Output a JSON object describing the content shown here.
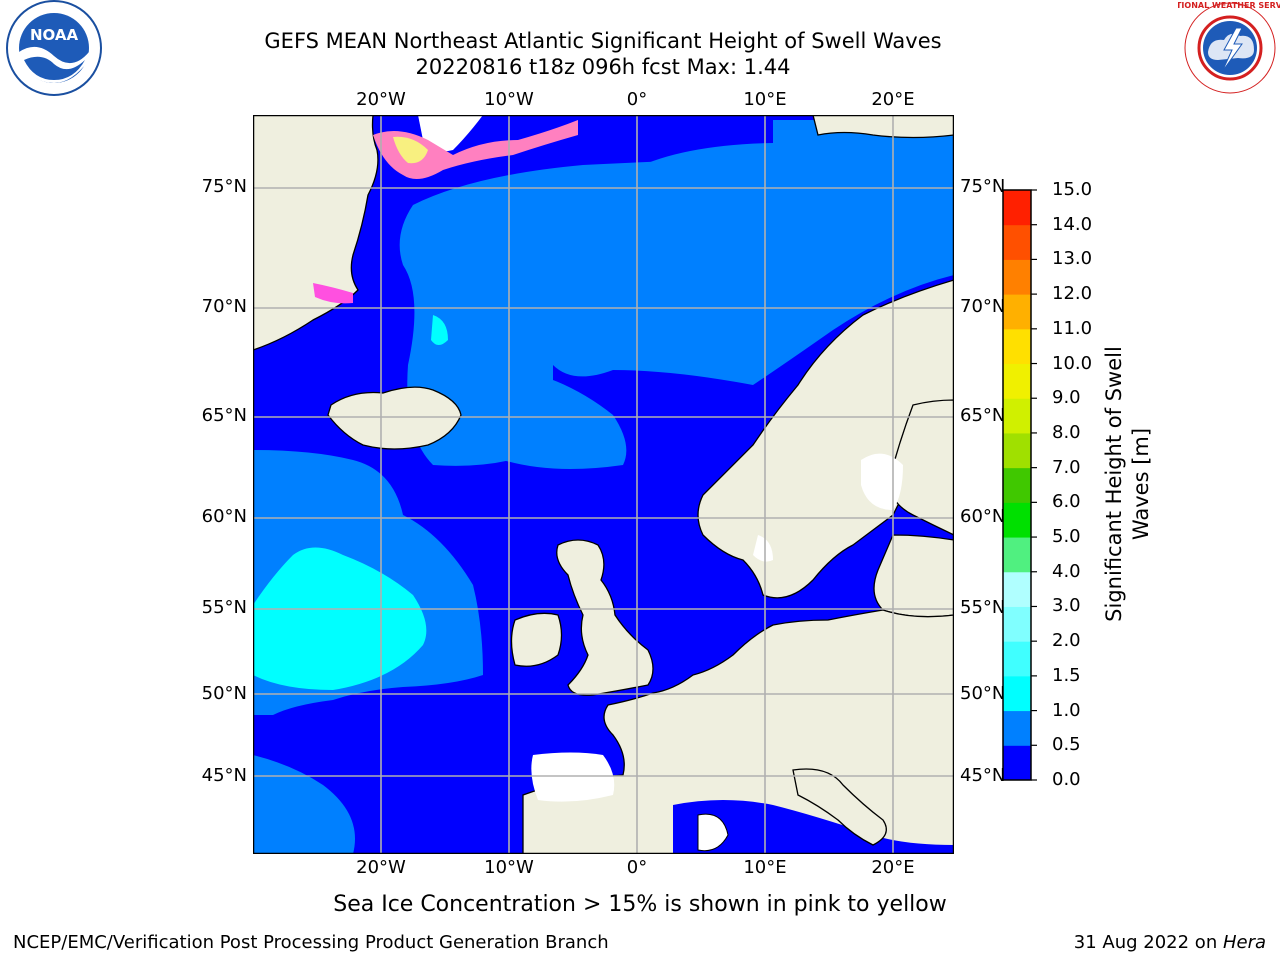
{
  "title": {
    "line1": "GEFS MEAN Northeast Atlantic Significant Height of Swell Waves",
    "line2": "20220816 t18z 096h fcst   Max: 1.44"
  },
  "caption": "Sea Ice Concentration > 15% is shown in pink to yellow",
  "credit_left": "NCEP/EMC/Verification Post Processing Product Generation Branch",
  "credit_right_date": "31 Aug 2022 on ",
  "credit_right_host": "Hera",
  "logos": {
    "left": "noaa-logo",
    "right": "nws-logo",
    "left_text": "NOAA",
    "right_text": "NATIONAL WEATHER SERVICE"
  },
  "map": {
    "lon_labels": [
      "20°W",
      "10°W",
      "0°",
      "10°E",
      "20°E"
    ],
    "lat_labels": [
      "75°N",
      "70°N",
      "65°N",
      "60°N",
      "55°N",
      "50°N",
      "45°N"
    ],
    "colors": {
      "land": "#efefdf",
      "ice_mask": "#ffffff",
      "grid": "#b0b0b0",
      "coast": "#000000"
    }
  },
  "colorbar": {
    "title_line1": "Significant Height of Swell",
    "title_line2": "Waves [m]",
    "tick_labels": [
      "0.0",
      "0.5",
      "1.0",
      "1.5",
      "2.0",
      "3.0",
      "4.0",
      "5.0",
      "6.0",
      "7.0",
      "8.0",
      "9.0",
      "10.0",
      "11.0",
      "12.0",
      "13.0",
      "14.0",
      "15.0"
    ],
    "colors": [
      "#0000ff",
      "#0080ff",
      "#00ffff",
      "#40ffff",
      "#80ffff",
      "#b0ffff",
      "#50f080",
      "#00e000",
      "#40c800",
      "#a0e000",
      "#d0f000",
      "#f0f000",
      "#ffe000",
      "#ffb000",
      "#ff8000",
      "#ff5000",
      "#ff2000",
      "#ff0000"
    ]
  },
  "chart_data": {
    "type": "heatmap",
    "title": "GEFS MEAN Northeast Atlantic Significant Height of Swell Waves",
    "subtitle": "20220816 t18z 096h fcst   Max: 1.44",
    "variable": "Significant Height of Swell Waves [m]",
    "max": 1.44,
    "levels": [
      0.0,
      0.5,
      1.0,
      1.5,
      2.0,
      3.0,
      4.0,
      5.0,
      6.0,
      7.0,
      8.0,
      9.0,
      10.0,
      11.0,
      12.0,
      13.0,
      14.0,
      15.0
    ],
    "x_ticks": [
      "20°W",
      "10°W",
      "0°",
      "10°E",
      "20°E"
    ],
    "y_ticks": [
      "75°N",
      "70°N",
      "65°N",
      "60°N",
      "55°N",
      "50°N",
      "45°N"
    ],
    "grid": true,
    "legend": "right"
  }
}
